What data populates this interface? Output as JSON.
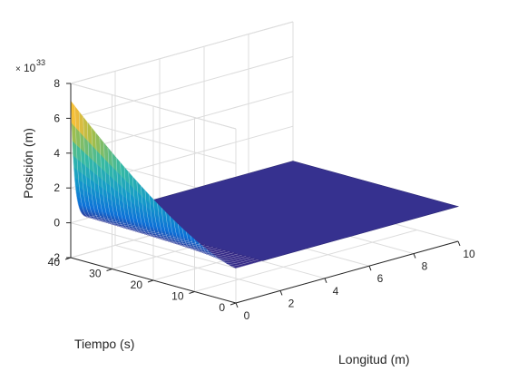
{
  "chart_data": {
    "type": "surface",
    "title": "",
    "xlabel": "Longitud (m)",
    "ylabel": "Tiempo (s)",
    "zlabel": "Posición (m)",
    "z_exponent_label": "10",
    "z_exponent_power": "33",
    "z_exponent_prefix": "×",
    "xlim": [
      0,
      10
    ],
    "ylim": [
      0,
      40
    ],
    "zlim": [
      -2e+33,
      8e+33
    ],
    "x_ticks": [
      "0",
      "2",
      "4",
      "6",
      "8",
      "10"
    ],
    "y_ticks": [
      "0",
      "10",
      "20",
      "30",
      "40"
    ],
    "z_ticks": [
      "-2",
      "0",
      "2",
      "4",
      "6",
      "8"
    ],
    "grid": true,
    "colormap": "parula",
    "surface": {
      "flat_value": 0,
      "peak_at": {
        "x": 0,
        "y": 40
      },
      "peak_value": 7e+33,
      "decay_along_x": "rapid, to ~0 by x≈1"
    },
    "colors": {
      "low": "#3b2f8f",
      "mid": "#26bcb0",
      "high": "#f5e11a"
    }
  }
}
